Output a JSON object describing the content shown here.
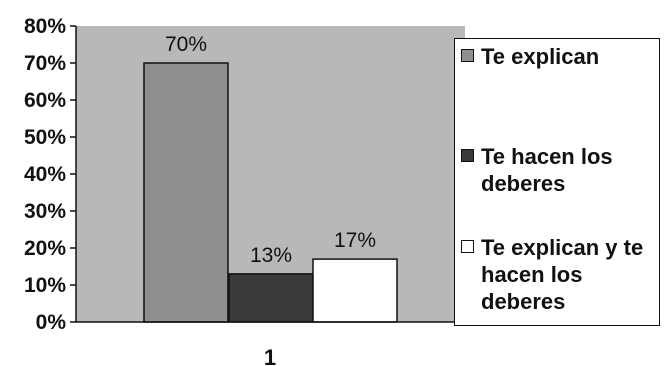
{
  "chart_data": {
    "type": "bar",
    "categories": [
      "1"
    ],
    "series": [
      {
        "name": "Te explican",
        "values": [
          70
        ],
        "color": "#8f8f8f"
      },
      {
        "name": "Te hacen los deberes",
        "values": [
          13
        ],
        "color": "#3a3a3a"
      },
      {
        "name": "Te explican y te hacen los deberes",
        "values": [
          17
        ],
        "color": "#ffffff"
      }
    ],
    "data_labels": [
      "70%",
      "13%",
      "17%"
    ],
    "ylim": [
      0,
      80
    ],
    "yticks": [
      "0%",
      "10%",
      "20%",
      "30%",
      "40%",
      "50%",
      "60%",
      "70%",
      "80%"
    ],
    "plot_background": "#b8b8b8",
    "grid": false,
    "legend_position": "right"
  },
  "legend": {
    "items": [
      {
        "label": "Te explican",
        "label_lines": [
          "Te explican"
        ]
      },
      {
        "label": "Te hacen los deberes",
        "label_lines": [
          "Te hacen los",
          "deberes"
        ]
      },
      {
        "label": "Te explican y te hacen los deberes",
        "label_lines": [
          "Te explican y te",
          "hacen los",
          "deberes"
        ]
      }
    ]
  }
}
